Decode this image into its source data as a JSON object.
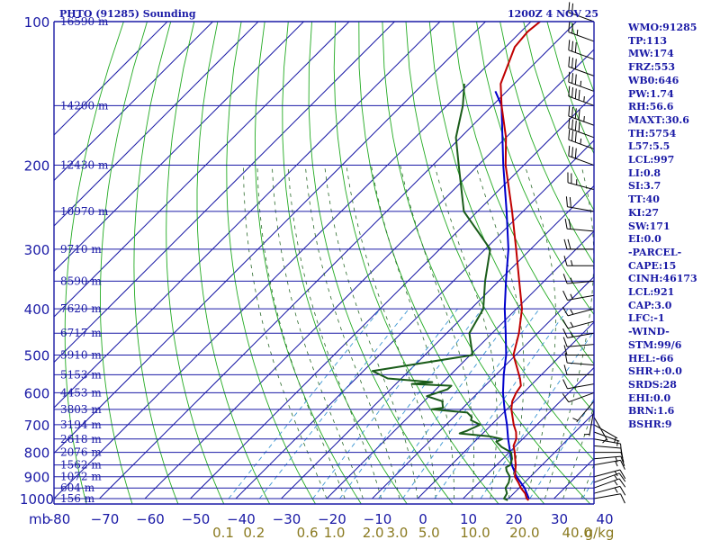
{
  "header": {
    "station": "PHTO (91285) Sounding",
    "time": "1200Z  4 NOV 25"
  },
  "stats": [
    "WMO:91285",
    "TP:113",
    "MW:174",
    "FRZ:553",
    "WB0:646",
    "PW:1.74",
    "RH:56.6",
    "MAXT:30.6",
    "TH:5754",
    "L57:5.5",
    "LCL:997",
    "LI:0.8",
    "SI:3.7",
    "TT:40",
    "KI:27",
    "SW:171",
    "EI:0.0",
    "-PARCEL-",
    "CAPE:15",
    "CINH:46173",
    "LCL:921",
    "CAP:3.0",
    "LFC:-1",
    "-WIND-",
    "STM:99/6",
    "HEL:-66",
    "SHR+:0.0",
    "SRDS:28",
    "EHI:0.0",
    "BRN:1.6",
    "BSHR:9"
  ],
  "colors": {
    "frame": "#1a1aa6",
    "temperature": "#c00000",
    "dewpoint": "#1a5c1a",
    "parcel": "#0000cc",
    "dry_adiabat": "#22aa22",
    "moist_adiabat": "#2a6a2a",
    "mixing_ratio": "#3c96d2",
    "mixing_ratio_label": "#8a7a20"
  },
  "chart_data": {
    "type": "skew-t",
    "pressure_range": [
      1000,
      100
    ],
    "temperature_range": [
      -80,
      40
    ],
    "pressure_ticks": [
      {
        "p": 100,
        "label": "100",
        "height": "16590 m"
      },
      {
        "p": 150,
        "label": "",
        "height": "14200 m"
      },
      {
        "p": 200,
        "label": "200",
        "height": "12430 m"
      },
      {
        "p": 250,
        "label": "",
        "height": "10970 m"
      },
      {
        "p": 300,
        "label": "300",
        "height": "9710 m"
      },
      {
        "p": 350,
        "label": "",
        "height": "8590 m"
      },
      {
        "p": 400,
        "label": "400",
        "height": "7620 m"
      },
      {
        "p": 450,
        "label": "",
        "height": "6717 m"
      },
      {
        "p": 500,
        "label": "500",
        "height": "5910 m"
      },
      {
        "p": 550,
        "label": "",
        "height": "5153 m"
      },
      {
        "p": 600,
        "label": "600",
        "height": "4453 m"
      },
      {
        "p": 650,
        "label": "",
        "height": "3803 m"
      },
      {
        "p": 700,
        "label": "700",
        "height": "3194 m"
      },
      {
        "p": 750,
        "label": "",
        "height": "2618 m"
      },
      {
        "p": 800,
        "label": "800",
        "height": "2076 m"
      },
      {
        "p": 850,
        "label": "",
        "height": "1562 m"
      },
      {
        "p": 900,
        "label": "900",
        "height": "1072 m"
      },
      {
        "p": 950,
        "label": "",
        "height": "604 m"
      },
      {
        "p": 1000,
        "label": "1000",
        "height": "156 m"
      }
    ],
    "pressure_axis_label": "mb",
    "temperature_ticks": [
      -80,
      -70,
      -60,
      -50,
      -40,
      -30,
      -20,
      -10,
      0,
      10,
      20,
      30,
      40
    ],
    "temperature_tick_labels": [
      "-80",
      "−70",
      "−60",
      "−50",
      "−40",
      "−30",
      "−20",
      "−10",
      "0",
      "10",
      "20",
      "30",
      "40"
    ],
    "mixing_ratio_labels": [
      {
        "w": 0.1,
        "label": "0.1"
      },
      {
        "w": 0.2,
        "label": "0.2"
      },
      {
        "w": 0.6,
        "label": "0.6"
      },
      {
        "w": 1.0,
        "label": "1.0"
      },
      {
        "w": 2.0,
        "label": "2.0"
      },
      {
        "w": 3.0,
        "label": "3.0"
      },
      {
        "w": 5.0,
        "label": "5.0"
      },
      {
        "w": 10.0,
        "label": "10.0"
      },
      {
        "w": 20.0,
        "label": "20.0"
      },
      {
        "w": 40.0,
        "label": "40.0"
      }
    ],
    "mixing_ratio_unit": "g/kg",
    "temperature": [
      [
        1008,
        24.8
      ],
      [
        1000,
        24.0
      ],
      [
        975,
        22.5
      ],
      [
        950,
        20.4
      ],
      [
        925,
        18.6
      ],
      [
        900,
        16.6
      ],
      [
        875,
        15.4
      ],
      [
        850,
        14.2
      ],
      [
        825,
        12.7
      ],
      [
        800,
        11.2
      ],
      [
        775,
        9.5
      ],
      [
        750,
        8.6
      ],
      [
        725,
        7.0
      ],
      [
        700,
        4.9
      ],
      [
        650,
        1.0
      ],
      [
        625,
        -0.6
      ],
      [
        600,
        -1.6
      ],
      [
        580,
        -2.1
      ],
      [
        560,
        -3.9
      ],
      [
        500,
        -10.5
      ],
      [
        450,
        -14.1
      ],
      [
        400,
        -18.8
      ],
      [
        350,
        -25.5
      ],
      [
        300,
        -33.2
      ],
      [
        250,
        -42.4
      ],
      [
        200,
        -54.0
      ],
      [
        175,
        -60.0
      ],
      [
        150,
        -68.0
      ],
      [
        135,
        -73.0
      ],
      [
        113,
        -78.0
      ],
      [
        105,
        -78.5
      ],
      [
        100,
        -78.0
      ]
    ],
    "dewpoint": [
      [
        1008,
        20.2
      ],
      [
        1000,
        19.0
      ],
      [
        975,
        18.5
      ],
      [
        950,
        17.0
      ],
      [
        925,
        16.5
      ],
      [
        900,
        15.5
      ],
      [
        875,
        13.5
      ],
      [
        860,
        12.6
      ],
      [
        850,
        13.0
      ],
      [
        825,
        12.0
      ],
      [
        800,
        10.4
      ],
      [
        780,
        7.2
      ],
      [
        760,
        4.8
      ],
      [
        750,
        5.5
      ],
      [
        740,
        2.0
      ],
      [
        730,
        -5.1
      ],
      [
        720,
        -4.0
      ],
      [
        700,
        -2.5
      ],
      [
        685,
        -5.5
      ],
      [
        675,
        -6.0
      ],
      [
        660,
        -8.0
      ],
      [
        650,
        -16.5
      ],
      [
        645,
        -14.4
      ],
      [
        625,
        -16.0
      ],
      [
        610,
        -20.5
      ],
      [
        600,
        -19.0
      ],
      [
        590,
        -17.5
      ],
      [
        580,
        -17.4
      ],
      [
        575,
        -26.5
      ],
      [
        570,
        -22.4
      ],
      [
        560,
        -33.0
      ],
      [
        540,
        -38.0
      ],
      [
        500,
        -19.5
      ],
      [
        450,
        -25.0
      ],
      [
        400,
        -27.3
      ],
      [
        350,
        -33.0
      ],
      [
        300,
        -38.9
      ],
      [
        250,
        -53.0
      ],
      [
        200,
        -64.3
      ],
      [
        175,
        -71.0
      ],
      [
        150,
        -76.5
      ],
      [
        135,
        -81.0
      ]
    ],
    "parcel": [
      [
        1000,
        24.5
      ],
      [
        950,
        21.2
      ],
      [
        900,
        17.0
      ],
      [
        850,
        13.3
      ],
      [
        800,
        10.2
      ],
      [
        750,
        6.8
      ],
      [
        700,
        3.4
      ],
      [
        650,
        -0.5
      ],
      [
        600,
        -4.5
      ],
      [
        550,
        -8.3
      ],
      [
        500,
        -12.1
      ],
      [
        450,
        -17.0
      ],
      [
        400,
        -22.6
      ],
      [
        350,
        -28.4
      ],
      [
        300,
        -34.9
      ],
      [
        250,
        -43.6
      ],
      [
        200,
        -54.5
      ],
      [
        150,
        -68.0
      ],
      [
        140,
        -72.5
      ]
    ],
    "wind_barbs": [
      {
        "p": 1000,
        "dir": 80,
        "spd": 10
      },
      {
        "p": 975,
        "dir": 75,
        "spd": 15
      },
      {
        "p": 950,
        "dir": 70,
        "spd": 15
      },
      {
        "p": 925,
        "dir": 70,
        "spd": 15
      },
      {
        "p": 900,
        "dir": 75,
        "spd": 15
      },
      {
        "p": 850,
        "dir": 80,
        "spd": 15
      },
      {
        "p": 825,
        "dir": 85,
        "spd": 15
      },
      {
        "p": 800,
        "dir": 90,
        "spd": 10
      },
      {
        "p": 775,
        "dir": 95,
        "spd": 10
      },
      {
        "p": 750,
        "dir": 100,
        "spd": 10
      },
      {
        "p": 725,
        "dir": 110,
        "spd": 5
      },
      {
        "p": 700,
        "dir": 120,
        "spd": 5
      },
      {
        "p": 675,
        "dir": 150,
        "spd": 5
      },
      {
        "p": 650,
        "dir": 190,
        "spd": 5
      },
      {
        "p": 625,
        "dir": 220,
        "spd": 5
      },
      {
        "p": 600,
        "dir": 250,
        "spd": 10
      },
      {
        "p": 575,
        "dir": 260,
        "spd": 10
      },
      {
        "p": 550,
        "dir": 270,
        "spd": 10
      },
      {
        "p": 525,
        "dir": 275,
        "spd": 10
      },
      {
        "p": 500,
        "dir": 270,
        "spd": 10
      },
      {
        "p": 475,
        "dir": 265,
        "spd": 10
      },
      {
        "p": 450,
        "dir": 260,
        "spd": 15
      },
      {
        "p": 425,
        "dir": 255,
        "spd": 15
      },
      {
        "p": 400,
        "dir": 255,
        "spd": 15
      },
      {
        "p": 375,
        "dir": 260,
        "spd": 15
      },
      {
        "p": 350,
        "dir": 265,
        "spd": 15
      },
      {
        "p": 325,
        "dir": 270,
        "spd": 15
      },
      {
        "p": 300,
        "dir": 270,
        "spd": 20
      },
      {
        "p": 275,
        "dir": 275,
        "spd": 20
      },
      {
        "p": 250,
        "dir": 280,
        "spd": 20
      },
      {
        "p": 225,
        "dir": 285,
        "spd": 25
      },
      {
        "p": 200,
        "dir": 290,
        "spd": 30
      },
      {
        "p": 185,
        "dir": 290,
        "spd": 35
      },
      {
        "p": 175,
        "dir": 290,
        "spd": 40
      },
      {
        "p": 165,
        "dir": 290,
        "spd": 45
      },
      {
        "p": 150,
        "dir": 290,
        "spd": 45
      },
      {
        "p": 140,
        "dir": 290,
        "spd": 35
      },
      {
        "p": 130,
        "dir": 290,
        "spd": 30
      },
      {
        "p": 120,
        "dir": 290,
        "spd": 30
      },
      {
        "p": 110,
        "dir": 290,
        "spd": 25
      },
      {
        "p": 100,
        "dir": 290,
        "spd": 20
      }
    ]
  }
}
